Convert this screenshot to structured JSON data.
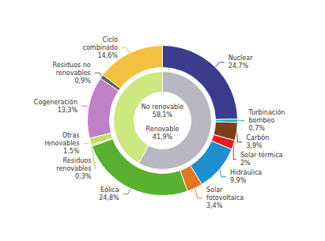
{
  "chart_data": {
    "type": "pie",
    "series": [
      {
        "categories": [
          "Nuclear",
          "Turbinación\nbombeo",
          "Carbón",
          "Solar térmica",
          "Hidráulica",
          "Solar\nfotovoltaica",
          "Eólica",
          "Residuos\nrenovables",
          "Otras\nrenovables",
          "Cogeneración",
          "Residuos no\nrenovables",
          "Ciclo\ncombinado"
        ],
        "values": [
          24.7,
          0.7,
          3.9,
          2.0,
          9.9,
          3.4,
          24.8,
          0.3,
          1.5,
          13.3,
          0.9,
          14.6
        ],
        "value_labels": [
          "24,7%",
          "0,7%",
          "3,9%",
          "2%",
          "9,9%",
          "3,4%",
          "24,8%",
          "0,3%",
          "1,5%",
          "13,3%",
          "0,9%",
          "14,6%"
        ],
        "colors": [
          "#3c3c8c",
          "#00b4c8",
          "#7b3f1a",
          "#e02020",
          "#1e8fcc",
          "#e07820",
          "#5ab030",
          "#a0c840",
          "#c8e060",
          "#c080c8",
          "#606060",
          "#f5c040"
        ]
      },
      {
        "categories": [
          "No renovable",
          "Renovable"
        ],
        "values": [
          58.1,
          41.9
        ],
        "value_labels": [
          "58,1%",
          "41,9%"
        ],
        "colors": [
          "#b8b8c0",
          "#cce880"
        ]
      }
    ],
    "data_labels": true
  }
}
